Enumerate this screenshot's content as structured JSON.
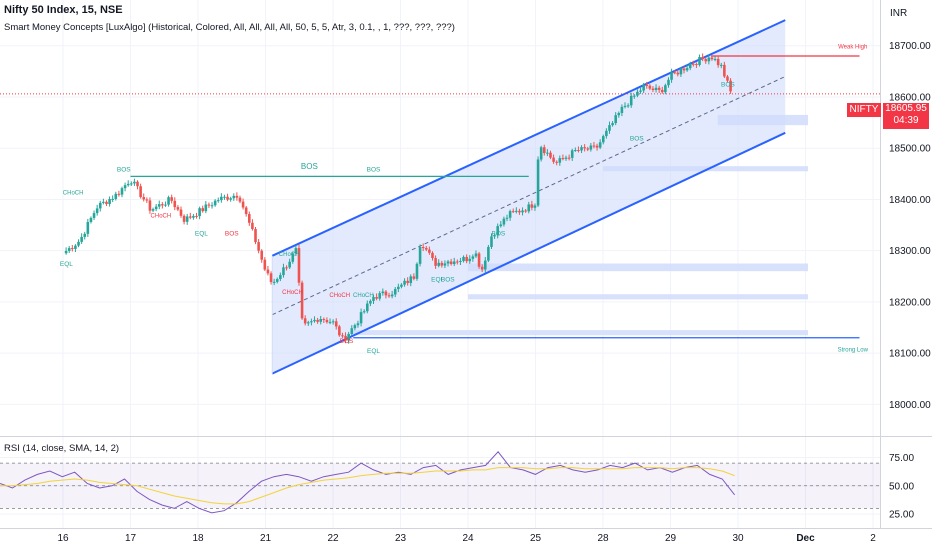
{
  "header": {
    "title": "Nifty 50 Index, 15, NSE",
    "indicator": "Smart Money Concepts [LuxAlgo] (Historical, Colored, All, All, All, All, 50, 5, 5, Atr, 3, 0.1, , 1, ???, ???, ???)"
  },
  "currency": "INR",
  "price_badge": {
    "symbol": "NIFTY",
    "price": "18605.95",
    "countdown": "04:39",
    "color": "#f23645"
  },
  "colors": {
    "up": "#26a69a",
    "down": "#ef5350",
    "channel": "#2962ff",
    "channel_fill": "#d1dcfb",
    "rsi": "#7e57c2",
    "rsi_ma": "#f2d33b"
  },
  "chart_data": [
    {
      "type": "candlestick",
      "title": "Nifty 50 Index, 15, NSE",
      "ylabel": "INR",
      "ylim": [
        17950,
        18760
      ],
      "yticks": [
        "18700.00",
        "18600.00",
        "18500.00",
        "18400.00",
        "18300.00",
        "18200.00",
        "18100.00",
        "18000.00"
      ],
      "ytick_values": [
        18700,
        18600,
        18500,
        18400,
        18300,
        18200,
        18100,
        18000
      ],
      "xticks": [
        "16",
        "17",
        "18",
        "21",
        "22",
        "23",
        "24",
        "25",
        "28",
        "29",
        "30",
        "Dec",
        "2"
      ],
      "close_path": [
        {
          "t": 0.0,
          "v": 18295
        },
        {
          "t": 0.25,
          "v": 18320
        },
        {
          "t": 0.5,
          "v": 18385
        },
        {
          "t": 0.8,
          "v": 18410
        },
        {
          "t": 1.0,
          "v": 18440
        },
        {
          "t": 1.3,
          "v": 18380
        },
        {
          "t": 1.6,
          "v": 18400
        },
        {
          "t": 1.8,
          "v": 18360
        },
        {
          "t": 2.0,
          "v": 18375
        },
        {
          "t": 2.3,
          "v": 18400
        },
        {
          "t": 2.6,
          "v": 18410
        },
        {
          "t": 2.85,
          "v": 18320
        },
        {
          "t": 3.0,
          "v": 18260
        },
        {
          "t": 3.1,
          "v": 18235
        },
        {
          "t": 3.3,
          "v": 18270
        },
        {
          "t": 3.45,
          "v": 18300
        },
        {
          "t": 3.55,
          "v": 18150
        },
        {
          "t": 3.8,
          "v": 18170
        },
        {
          "t": 4.0,
          "v": 18160
        },
        {
          "t": 4.15,
          "v": 18125
        },
        {
          "t": 4.35,
          "v": 18160
        },
        {
          "t": 4.6,
          "v": 18210
        },
        {
          "t": 4.9,
          "v": 18220
        },
        {
          "t": 5.2,
          "v": 18250
        },
        {
          "t": 5.3,
          "v": 18320
        },
        {
          "t": 5.5,
          "v": 18275
        },
        {
          "t": 5.75,
          "v": 18280
        },
        {
          "t": 6.0,
          "v": 18285
        },
        {
          "t": 6.1,
          "v": 18300
        },
        {
          "t": 6.2,
          "v": 18260
        },
        {
          "t": 6.35,
          "v": 18330
        },
        {
          "t": 6.6,
          "v": 18370
        },
        {
          "t": 6.9,
          "v": 18385
        },
        {
          "t": 7.0,
          "v": 18395
        },
        {
          "t": 7.05,
          "v": 18510
        },
        {
          "t": 7.3,
          "v": 18470
        },
        {
          "t": 7.6,
          "v": 18495
        },
        {
          "t": 7.9,
          "v": 18500
        },
        {
          "t": 8.0,
          "v": 18520
        },
        {
          "t": 8.3,
          "v": 18580
        },
        {
          "t": 8.6,
          "v": 18620
        },
        {
          "t": 8.85,
          "v": 18610
        },
        {
          "t": 9.0,
          "v": 18640
        },
        {
          "t": 9.3,
          "v": 18665
        },
        {
          "t": 9.6,
          "v": 18680
        },
        {
          "t": 9.75,
          "v": 18660
        },
        {
          "t": 9.9,
          "v": 18606
        }
      ],
      "channel": {
        "upper": [
          {
            "t": 3.1,
            "v": 18290
          },
          {
            "t": 10.7,
            "v": 18750
          }
        ],
        "lower": [
          {
            "t": 3.1,
            "v": 18060
          },
          {
            "t": 10.7,
            "v": 18530
          }
        ],
        "mid": [
          {
            "t": 3.1,
            "v": 18175
          },
          {
            "t": 10.7,
            "v": 18640
          }
        ]
      },
      "levels": [
        {
          "name": "BOS",
          "v": 18445,
          "from": 1.0,
          "to": 6.9,
          "color": "#26a69a"
        },
        {
          "name": "Strong Low",
          "v": 18130,
          "from": 4.3,
          "to": 11.8,
          "color": "#2962ff"
        },
        {
          "name": "Weak High",
          "v": 18680,
          "from": 9.6,
          "to": 11.8,
          "color": "#f23645"
        }
      ],
      "zones": [
        {
          "low": 18545,
          "high": 18565,
          "from": 9.7
        },
        {
          "low": 18455,
          "high": 18465,
          "from": 8.0
        },
        {
          "low": 18260,
          "high": 18275,
          "from": 6.0
        },
        {
          "low": 18205,
          "high": 18215,
          "from": 6.0
        },
        {
          "low": 18135,
          "high": 18145,
          "from": 4.3
        }
      ],
      "annotations": [
        {
          "text": "BOS",
          "t": 0.9,
          "v": 18455,
          "color": "#26a69a"
        },
        {
          "text": "CHoCH",
          "t": 0.15,
          "v": 18410,
          "color": "#26a69a"
        },
        {
          "text": "EQL",
          "t": 0.05,
          "v": 18270,
          "color": "#26a69a"
        },
        {
          "text": "CHoCH",
          "t": 1.45,
          "v": 18365,
          "color": "#f23645"
        },
        {
          "text": "EQL",
          "t": 2.05,
          "v": 18330,
          "color": "#26a69a"
        },
        {
          "text": "BOS",
          "t": 2.5,
          "v": 18330,
          "color": "#f23645"
        },
        {
          "text": "CHoCH",
          "t": 3.35,
          "v": 18290,
          "color": "#26a69a"
        },
        {
          "text": "CHoCH",
          "t": 3.4,
          "v": 18215,
          "color": "#f23645"
        },
        {
          "text": "BOS",
          "t": 4.6,
          "v": 18455,
          "color": "#26a69a"
        },
        {
          "text": "EQL",
          "t": 4.6,
          "v": 18100,
          "color": "#26a69a"
        },
        {
          "text": "BOS",
          "t": 4.2,
          "v": 18120,
          "color": "#f23645"
        },
        {
          "text": "CHoCH",
          "t": 4.1,
          "v": 18210,
          "color": "#f23645"
        },
        {
          "text": "CHoCH",
          "t": 4.45,
          "v": 18210,
          "color": "#26a69a"
        },
        {
          "text": "EQL",
          "t": 5.55,
          "v": 18240,
          "color": "#26a69a"
        },
        {
          "text": "BOS",
          "t": 5.7,
          "v": 18240,
          "color": "#26a69a"
        },
        {
          "text": "BOS",
          "t": 6.45,
          "v": 18330,
          "color": "#26a69a"
        },
        {
          "text": "BOS",
          "t": 8.5,
          "v": 18515,
          "color": "#26a69a"
        },
        {
          "text": "BOS",
          "t": 9.85,
          "v": 18620,
          "color": "#26a69a"
        },
        {
          "text": "Weak High",
          "t": 11.7,
          "v": 18695,
          "color": "#f23645"
        },
        {
          "text": "Strong Low",
          "t": 11.7,
          "v": 18103,
          "color": "#26a69a"
        }
      ]
    },
    {
      "type": "line",
      "title": "RSI (14, close, SMA, 14, 2)",
      "ylim": [
        18,
        86
      ],
      "yticks": [
        "75.00",
        "50.00",
        "25.00"
      ],
      "ytick_values": [
        75,
        50,
        25
      ],
      "band": [
        30,
        70
      ],
      "series": [
        {
          "name": "RSI",
          "color": "#7e57c2",
          "values": [
            52,
            48,
            55,
            60,
            63,
            58,
            62,
            52,
            48,
            50,
            56,
            45,
            38,
            33,
            30,
            36,
            30,
            26,
            28,
            35,
            45,
            54,
            58,
            60,
            58,
            54,
            58,
            60,
            62,
            70,
            64,
            60,
            62,
            60,
            66,
            68,
            60,
            64,
            66,
            68,
            80,
            66,
            64,
            60,
            66,
            68,
            64,
            62,
            64,
            68,
            66,
            70,
            64,
            66,
            62,
            66,
            68,
            60,
            56,
            42
          ]
        },
        {
          "name": "SMA",
          "color": "#f2d33b",
          "values": [
            50,
            50,
            51,
            52,
            54,
            55,
            56,
            55,
            53,
            52,
            51,
            50,
            47,
            44,
            41,
            39,
            37,
            35,
            34,
            34,
            36,
            40,
            44,
            48,
            51,
            53,
            55,
            56,
            57,
            59,
            60,
            61,
            61,
            61,
            62,
            63,
            63,
            63,
            64,
            64,
            66,
            66,
            66,
            65,
            65,
            66,
            66,
            65,
            65,
            65,
            65,
            66,
            66,
            66,
            65,
            66,
            66,
            65,
            63,
            59
          ]
        }
      ]
    }
  ]
}
